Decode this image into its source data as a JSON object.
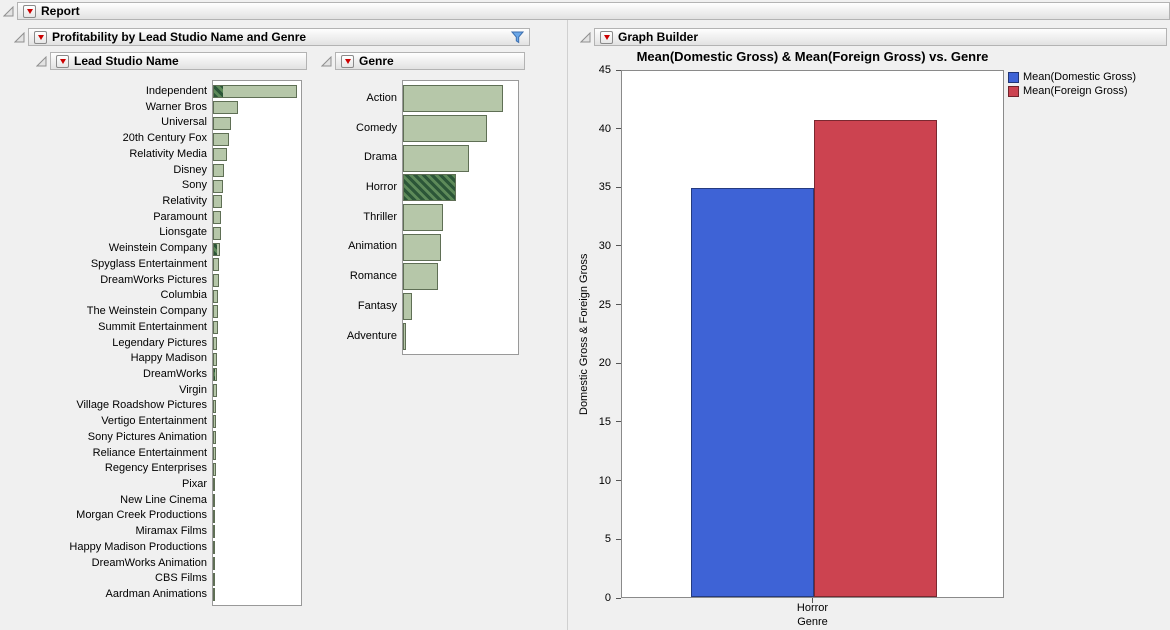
{
  "window": {
    "title": "Report"
  },
  "profitability": {
    "title": "Profitability by Lead Studio Name and Genre"
  },
  "graph_builder": {
    "title": "Graph Builder",
    "chart_title": "Mean(Domestic Gross) & Mean(Foreign Gross) vs. Genre",
    "ylabel": "Domestic Gross & Foreign Gross",
    "xlabel": "Genre",
    "x_category": "Horror"
  },
  "colors": {
    "histogram_fill": "#b6c7a9",
    "histogram_border": "#5f6f55",
    "selection_hatch_dark": "#2c5638",
    "selection_hatch_light": "#5d8a59",
    "domestic_blue": "#3e63d6",
    "foreign_red": "#cc4350",
    "filter_blue": "#6aa7e8"
  },
  "chart_data": [
    {
      "type": "bar",
      "orientation": "horizontal",
      "title": "Lead Studio Name",
      "note": "JMP distribution histogram; axis unlabeled; values are percent of plot width; selected = hatched highlighted portion",
      "categories": [
        "Independent",
        "Warner Bros",
        "Universal",
        "20th Century Fox",
        "Relativity Media",
        "Disney",
        "Sony",
        "Relativity",
        "Paramount",
        "Lionsgate",
        "Weinstein Company",
        "Spyglass Entertainment",
        "DreamWorks Pictures",
        "Columbia",
        "The Weinstein Company",
        "Summit Entertainment",
        "Legendary Pictures",
        "Happy Madison",
        "DreamWorks",
        "Virgin",
        "Village Roadshow Pictures",
        "Vertigo Entertainment",
        "Sony Pictures Animation",
        "Reliance Entertainment",
        "Regency Enterprises",
        "Pixar",
        "New Line Cinema",
        "Morgan Creek Productions",
        "Miramax Films",
        "Happy Madison Productions",
        "DreamWorks Animation",
        "CBS Films",
        "Aardman Animations"
      ],
      "values": [
        96,
        28,
        21,
        18,
        16,
        13,
        11,
        10,
        9,
        9,
        8,
        7,
        7,
        6,
        6,
        6,
        5,
        5,
        5,
        4,
        3,
        3,
        3,
        3,
        3,
        2.5,
        2.5,
        2,
        2,
        2,
        2,
        1.5,
        1.5
      ],
      "selected": [
        11,
        0,
        0,
        0,
        0,
        0,
        0,
        0,
        0,
        0,
        4,
        0,
        0,
        0,
        0,
        0,
        0,
        0,
        2,
        0,
        0,
        0,
        0,
        0,
        0,
        0,
        0,
        0,
        0,
        0,
        0,
        0,
        0
      ]
    },
    {
      "type": "bar",
      "orientation": "horizontal",
      "title": "Genre",
      "note": "JMP distribution histogram; axis unlabeled; values are percent of plot width; Horror is fully selected (hatched)",
      "categories": [
        "Action",
        "Comedy",
        "Drama",
        "Horror",
        "Thriller",
        "Animation",
        "Romance",
        "Fantasy",
        "Adventure"
      ],
      "values": [
        87,
        73,
        57,
        46,
        35,
        33,
        30,
        8,
        3
      ],
      "selected": [
        0,
        0,
        0,
        46,
        0,
        0,
        0,
        0,
        0
      ]
    },
    {
      "type": "bar",
      "title": "Mean(Domestic Gross) & Mean(Foreign Gross) vs. Genre",
      "categories": [
        "Horror"
      ],
      "series": [
        {
          "name": "Mean(Domestic Gross)",
          "color": "#3e63d6",
          "values": [
            35
          ]
        },
        {
          "name": "Mean(Foreign Gross)",
          "color": "#cc4350",
          "values": [
            40.8
          ]
        }
      ],
      "xlabel": "Genre",
      "ylabel": "Domestic Gross & Foreign Gross",
      "ylim": [
        0,
        45
      ],
      "yticks": [
        0,
        5,
        10,
        15,
        20,
        25,
        30,
        35,
        40,
        45
      ],
      "legend_position": "top-right",
      "grid": false
    }
  ]
}
